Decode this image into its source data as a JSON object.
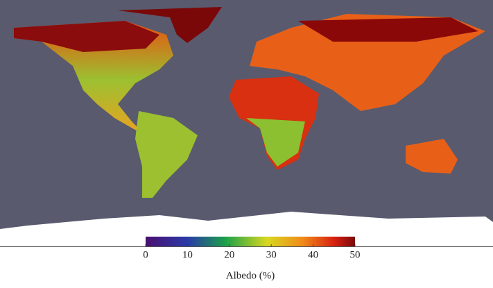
{
  "colorbar": {
    "label": "Albedo (%)",
    "lim": [
      0,
      50
    ],
    "ticks": [
      0,
      10,
      20,
      30,
      40,
      50
    ]
  }
}
